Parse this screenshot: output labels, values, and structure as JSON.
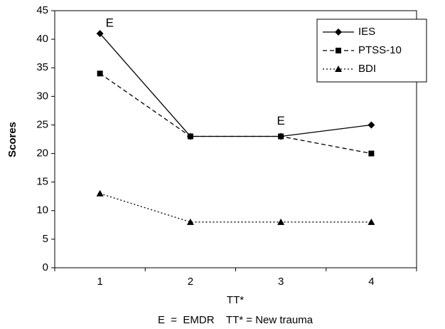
{
  "chart_data": {
    "type": "line",
    "categories": [
      "1",
      "2",
      "3",
      "4"
    ],
    "series": [
      {
        "name": "IES",
        "color": "#000000",
        "marker": "diamond",
        "linestyle": "solid",
        "values": [
          41,
          23,
          23,
          25
        ]
      },
      {
        "name": "PTSS-10",
        "color": "#000000",
        "marker": "square",
        "linestyle": "dashed",
        "values": [
          34,
          23,
          23,
          20
        ]
      },
      {
        "name": "BDI",
        "color": "#000000",
        "marker": "triangle",
        "linestyle": "dotted",
        "values": [
          13,
          8,
          8,
          8
        ]
      }
    ],
    "xlabel": "TT*",
    "ylabel": "Scores",
    "ylim": [
      0,
      45
    ],
    "yticks": [
      0,
      5,
      10,
      15,
      20,
      25,
      30,
      35,
      40,
      45
    ],
    "grid": false,
    "legend": "upper right",
    "annotations": [
      "E",
      "E"
    ],
    "note": "E  =  EMDR    TT* = New trauma"
  }
}
